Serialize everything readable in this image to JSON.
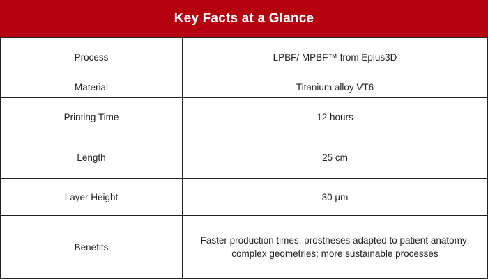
{
  "header": {
    "title": "Key Facts at a Glance",
    "background_color": "#b5000f",
    "text_color": "#ffffff"
  },
  "table": {
    "rows": [
      {
        "label": "Process",
        "value": "LPBF/ MPBF™ from Eplus3D"
      },
      {
        "label": "Material",
        "value": "Titanium alloy VT6"
      },
      {
        "label": "Printing Time",
        "value": "12 hours"
      },
      {
        "label": "Length",
        "value": "25 cm"
      },
      {
        "label": "Layer Height",
        "value": "30 µm"
      },
      {
        "label": "Benefits",
        "value": "Faster production times; prostheses adapted to patient anatomy; complex geometries; more sustainable processes"
      }
    ]
  }
}
